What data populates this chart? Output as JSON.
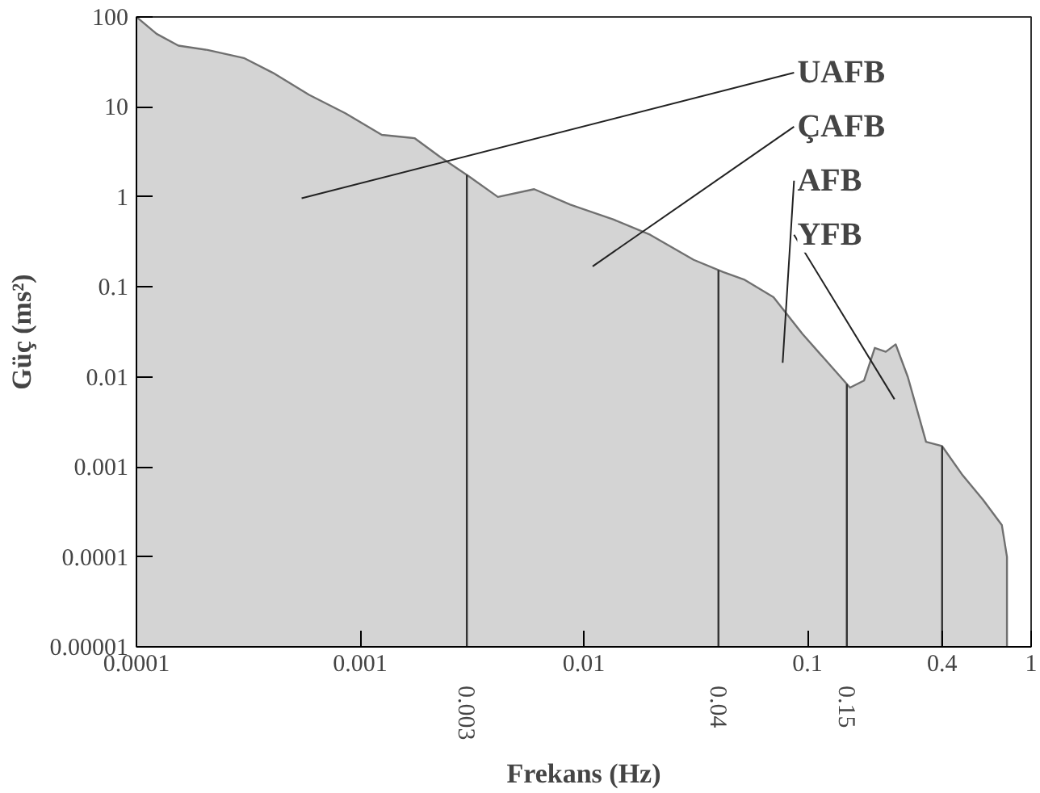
{
  "chart_data": {
    "type": "area",
    "xlabel": "Frekans (Hz)",
    "ylabel": "Güç (ms²)",
    "log": "xy",
    "grid": false,
    "x": [
      0.0001,
      0.000123,
      0.000154,
      0.000208,
      0.000302,
      0.000407,
      0.000592,
      0.000859,
      0.00125,
      0.00175,
      0.00227,
      0.00306,
      0.00413,
      0.006,
      0.0087,
      0.0136,
      0.0198,
      0.031,
      0.042,
      0.052,
      0.0705,
      0.095,
      0.128,
      0.155,
      0.179,
      0.2,
      0.224,
      0.248,
      0.281,
      0.339,
      0.4,
      0.49,
      0.61,
      0.74,
      0.78,
      0.78
    ],
    "series": [
      {
        "color": "#d4d4d4",
        "values": [
          100,
          65,
          48,
          43,
          35,
          24,
          13.6,
          8.5,
          4.9,
          4.5,
          2.8,
          1.7,
          1.0,
          1.22,
          0.82,
          0.56,
          0.38,
          0.2,
          0.146,
          0.121,
          0.077,
          0.03,
          0.013,
          0.0076,
          0.0091,
          0.021,
          0.019,
          0.023,
          0.01,
          0.0019,
          0.0017,
          0.00083,
          0.00043,
          0.000225,
          0.0001,
          1e-05
        ]
      }
    ],
    "xlim": [
      0.0001,
      1
    ],
    "ylim": [
      1e-05,
      100
    ],
    "xticks": [
      0.0001,
      0.001,
      0.01,
      0.1,
      0.4,
      1
    ],
    "yticks": [
      100,
      10,
      1,
      0.1,
      0.01,
      0.001,
      0.0001,
      {
        "value": 1e-05,
        "label": "0.00001"
      }
    ],
    "ref_lines": [
      {
        "axis": "x",
        "value": 0.003,
        "label": "0.003"
      },
      {
        "axis": "x",
        "value": 0.04,
        "label": "0.04"
      },
      {
        "axis": "x",
        "value": 0.15,
        "label": "0.15"
      },
      {
        "axis": "x",
        "value": 0.4,
        "label": null
      }
    ],
    "annotations": [
      "UAFB",
      "ÇAFB",
      "AFB",
      "YFB"
    ]
  }
}
